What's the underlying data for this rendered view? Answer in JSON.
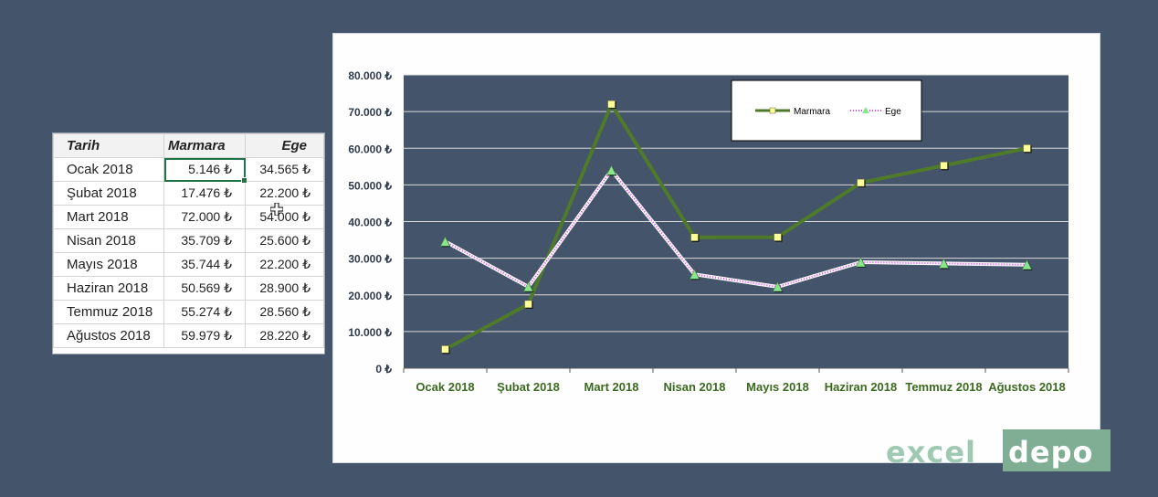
{
  "table": {
    "headers": [
      "Tarih",
      "Marmara",
      "Ege"
    ],
    "rows": [
      [
        "Ocak 2018",
        "5.146 ₺",
        "34.565 ₺"
      ],
      [
        "Şubat 2018",
        "17.476 ₺",
        "22.200 ₺"
      ],
      [
        "Mart 2018",
        "72.000 ₺",
        "54.000 ₺"
      ],
      [
        "Nisan 2018",
        "35.709 ₺",
        "25.600 ₺"
      ],
      [
        "Mayıs 2018",
        "35.744 ₺",
        "22.200 ₺"
      ],
      [
        "Haziran 2018",
        "50.569 ₺",
        "28.900 ₺"
      ],
      [
        "Temmuz 2018",
        "55.274 ₺",
        "28.560 ₺"
      ],
      [
        "Ağustos 2018",
        "59.979 ₺",
        "28.220 ₺"
      ]
    ]
  },
  "chart_data": {
    "type": "line",
    "categories": [
      "Ocak 2018",
      "Şubat 2018",
      "Mart 2018",
      "Nisan 2018",
      "Mayıs 2018",
      "Haziran 2018",
      "Temmuz 2018",
      "Ağustos 2018"
    ],
    "series": [
      {
        "name": "Marmara",
        "values": [
          5146,
          17476,
          72000,
          35709,
          35744,
          50569,
          55274,
          59979
        ],
        "color": "#4e7a2a",
        "marker": "square",
        "marker_color": "#ffff99"
      },
      {
        "name": "Ege",
        "values": [
          34565,
          22200,
          54000,
          25600,
          22200,
          28900,
          28560,
          28220
        ],
        "color": "#ffffff",
        "marker": "triangle",
        "marker_color": "#8ae68a",
        "dash_color": "#e040fb"
      }
    ],
    "yticks": [
      "0 ₺",
      "10.000 ₺",
      "20.000 ₺",
      "30.000 ₺",
      "40.000 ₺",
      "50.000 ₺",
      "60.000 ₺",
      "70.000 ₺",
      "80.000 ₺"
    ],
    "ylim": [
      0,
      80000
    ],
    "plot_background": "#44546a",
    "gridlines": true,
    "legend_position": "top-right"
  },
  "logo": {
    "left": "excel",
    "right": "depo"
  }
}
